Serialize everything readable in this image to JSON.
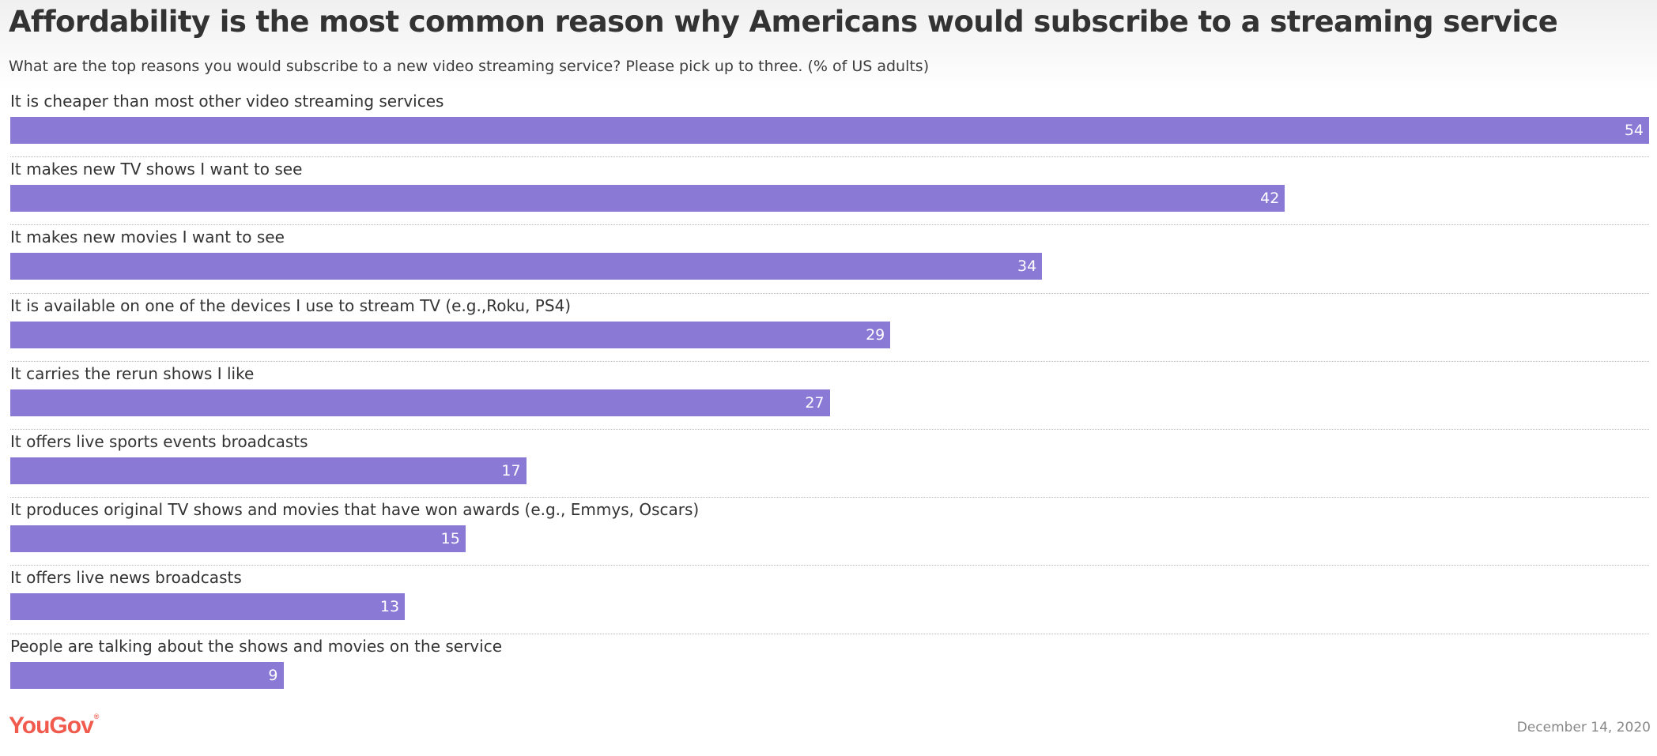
{
  "title": "Affordability is the most common reason why Americans would subscribe to a streaming service",
  "subtitle": "What are the top reasons you would subscribe to a new video streaming service? Please pick up to three. (% of US adults)",
  "chart_data": {
    "type": "bar",
    "orientation": "horizontal",
    "title": "Affordability is the most common reason why Americans would subscribe to a streaming service",
    "subtitle": "What are the top reasons you would subscribe to a new video streaming service? Please pick up to three. (% of US adults)",
    "xlabel": "",
    "ylabel": "",
    "xlim": [
      0,
      54
    ],
    "grid": false,
    "bar_color": "#8a7ad6",
    "categories": [
      "It is cheaper than most other video streaming services",
      "It makes new TV shows I want to see",
      "It makes new movies I want to see",
      "It is available on one of the devices I use to stream TV (e.g.,Roku, PS4)",
      "It carries the rerun shows I like",
      "It offers live sports events broadcasts",
      "It produces original TV shows and movies that have won awards (e.g., Emmys, Oscars)",
      "It offers live news broadcasts",
      "People are talking about the shows and movies on the service"
    ],
    "values": [
      54,
      42,
      34,
      29,
      27,
      17,
      15,
      13,
      9
    ]
  },
  "footer": {
    "logo_text": "YouGov",
    "logo_color": "#f15b4e",
    "date": "December 14, 2020"
  }
}
